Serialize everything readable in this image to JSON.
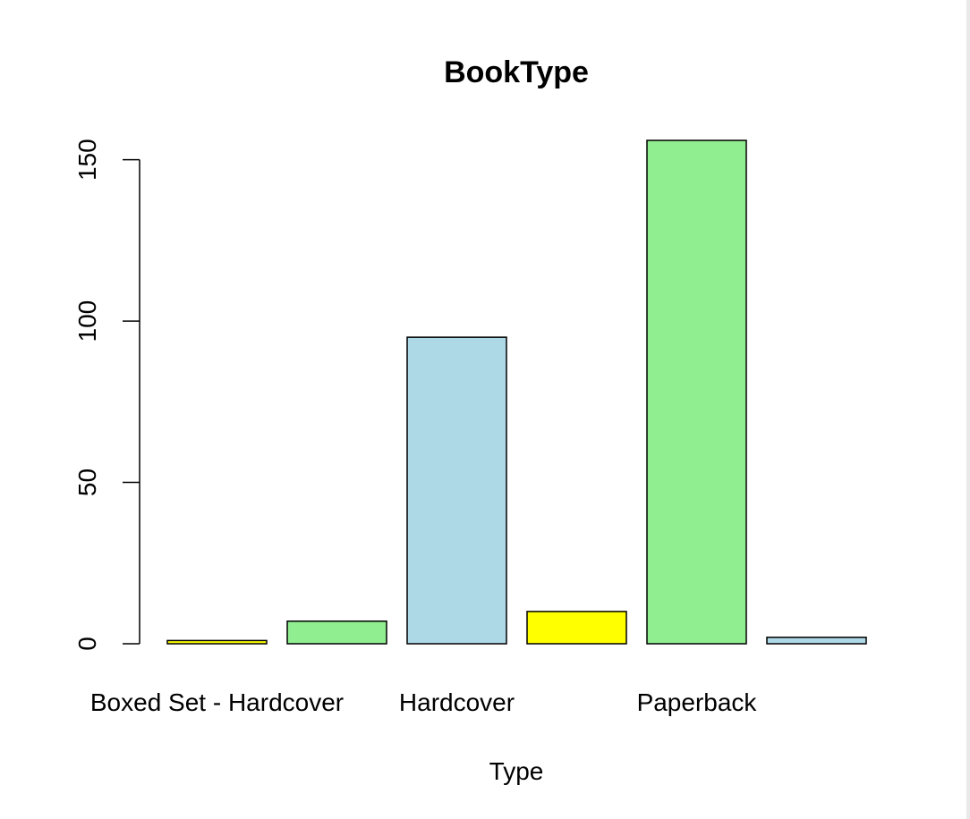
{
  "chart_data": {
    "type": "bar",
    "title": "BookType",
    "xlabel": "Type",
    "ylabel": "",
    "categories": [
      "Boxed Set - Hardcover",
      "",
      "Hardcover",
      "",
      "Paperback",
      ""
    ],
    "values": [
      1,
      7,
      95,
      10,
      156,
      2
    ],
    "colors": [
      "#FFFF00",
      "#90EE90",
      "#ADD8E6",
      "#FFFF00",
      "#90EE90",
      "#ADD8E6"
    ],
    "yticks": [
      0,
      50,
      100,
      150
    ],
    "ytick_labels": [
      "0",
      "50",
      "100",
      "150"
    ],
    "ylim": [
      0,
      156
    ],
    "grid": false,
    "legend": "none"
  }
}
